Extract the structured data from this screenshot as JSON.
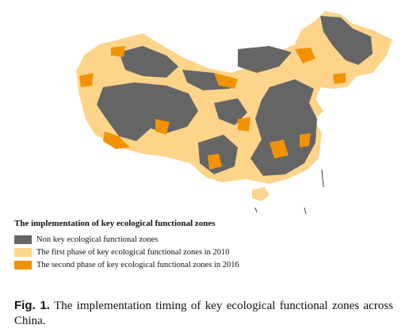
{
  "legend": {
    "title": "The implementation of key ecological functional zones",
    "items": [
      {
        "label": "Non key ecological functional zones",
        "color": "#656565"
      },
      {
        "label": "The first phase of key ecological functional zones in 2010",
        "color": "#fdd48a"
      },
      {
        "label": "The second phase of key ecological functional zones in 2016",
        "color": "#f39200"
      }
    ]
  },
  "caption": {
    "label": "Fig. 1.",
    "text": "The implementation timing of key ecological functional zones across China."
  }
}
